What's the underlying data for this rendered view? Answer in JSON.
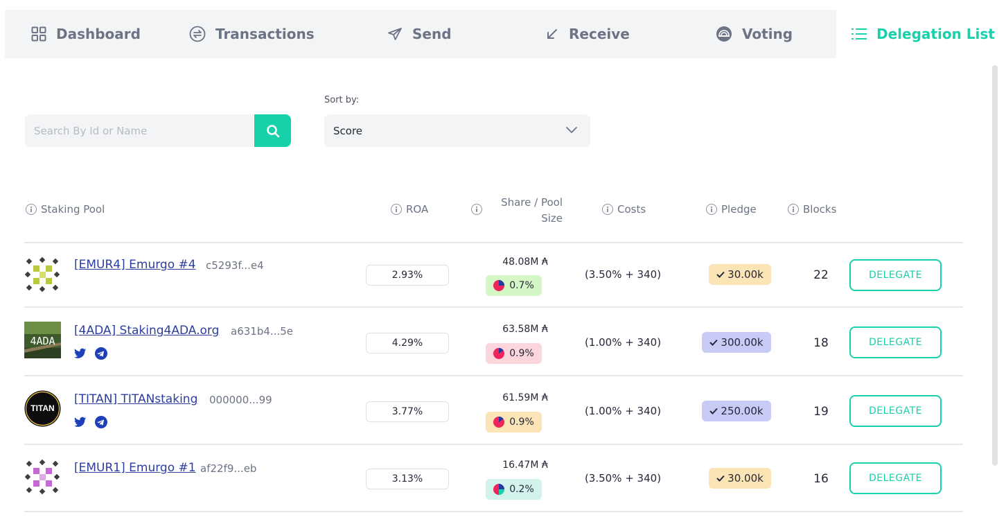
{
  "tabs": [
    {
      "label": "Dashboard",
      "icon": "dashboard-icon",
      "active": false
    },
    {
      "label": "Transactions",
      "icon": "transactions-icon",
      "active": false
    },
    {
      "label": "Send",
      "icon": "send-icon",
      "active": false
    },
    {
      "label": "Receive",
      "icon": "receive-icon",
      "active": false
    },
    {
      "label": "Voting",
      "icon": "voting-icon",
      "active": false
    },
    {
      "label": "Delegation List",
      "icon": "list-icon",
      "active": true
    }
  ],
  "search": {
    "placeholder": "Search By Id or Name",
    "value": ""
  },
  "sort": {
    "label": "Sort by:",
    "value": "Score"
  },
  "columns": {
    "pool": "Staking Pool",
    "roa": "ROA",
    "share_line1": "Share / Pool",
    "share_line2": "Size",
    "costs": "Costs",
    "pledge": "Pledge",
    "blocks": "Blocks"
  },
  "delegate_label": "DELEGATE",
  "pools": [
    {
      "name": "[EMUR4] Emurgo #4",
      "id": "c5293f...e4",
      "roa": "2.93%",
      "size": "48.08M ₳",
      "share": "0.7%",
      "share_fraction": 0.007,
      "costs": "(3.50% + 340)",
      "pledge": "30.00k",
      "blocks": "22",
      "pledge_color": "#fbe4b6",
      "share_color": "#d5f7c5",
      "logo": "emurgo-green-logo"
    },
    {
      "name": "[4ADA] Staking4ADA.org",
      "id": "a631b4...5e",
      "roa": "4.29%",
      "size": "63.58M ₳",
      "share": "0.9%",
      "share_fraction": 0.009,
      "costs": "(1.00% + 340)",
      "pledge": "300.00k",
      "blocks": "18",
      "pledge_color": "#c9cbf7",
      "share_color": "#fcd6dc",
      "logo": "4ada-logo"
    },
    {
      "name": "[TITAN] TITANstaking",
      "id": "000000...99",
      "roa": "3.77%",
      "size": "61.59M ₳",
      "share": "0.9%",
      "share_fraction": 0.009,
      "costs": "(1.00% + 340)",
      "pledge": "250.00k",
      "blocks": "19",
      "pledge_color": "#c9cbf7",
      "share_color": "#fbe4b6",
      "logo": "titan-logo"
    },
    {
      "name": "[EMUR1] Emurgo #1",
      "id": "af22f9...eb",
      "roa": "3.13%",
      "size": "16.47M ₳",
      "share": "0.2%",
      "share_fraction": 0.002,
      "costs": "(3.50% + 340)",
      "pledge": "30.00k",
      "blocks": "16",
      "pledge_color": "#fbe4b6",
      "share_color": "#d2f3ec",
      "logo": "emurgo-purple-logo"
    }
  ],
  "colors": {
    "accent": "#17d1aa",
    "link": "#2d3d9e",
    "twitter": "#1d3fb8",
    "pie": "#f0245c"
  },
  "logo_text": {
    "ada": "4ADA",
    "titan": "TITAN"
  }
}
